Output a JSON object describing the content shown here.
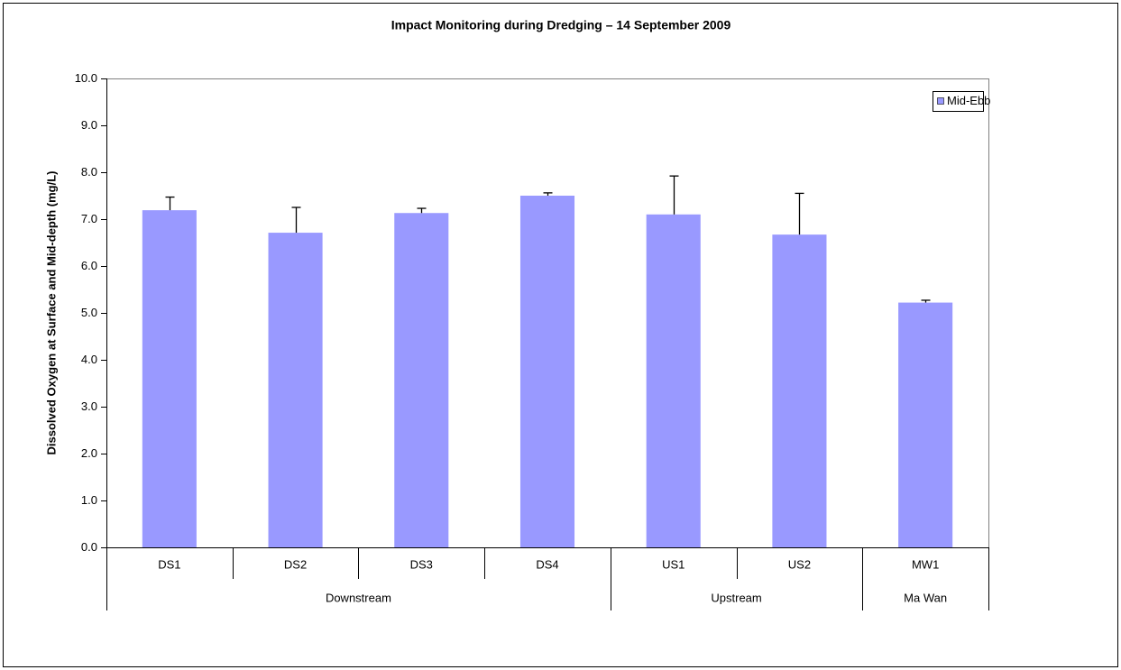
{
  "chart_data": {
    "type": "bar",
    "title": "Impact Monitoring during Dredging –  14 September 2009",
    "y_label": "Dissolved Oxygen at Surface and Mid-depth (mg/L)",
    "categories": [
      "DS1",
      "DS2",
      "DS3",
      "DS4",
      "US1",
      "US2",
      "MW1"
    ],
    "groups": [
      {
        "label": "Downstream",
        "span": 4
      },
      {
        "label": "Upstream",
        "span": 2
      },
      {
        "label": "Ma Wan",
        "span": 1
      }
    ],
    "series": [
      {
        "name": "Mid-Ebb",
        "color": "#9999ff",
        "values": [
          7.19,
          6.71,
          7.13,
          7.5,
          7.1,
          6.67,
          5.22
        ],
        "errors": [
          0.28,
          0.54,
          0.1,
          0.06,
          0.82,
          0.88,
          0.05
        ]
      }
    ],
    "ylim": [
      0,
      10
    ],
    "yticks": [
      {
        "value": 0,
        "label": "0.0"
      },
      {
        "value": 1,
        "label": "1.0"
      },
      {
        "value": 2,
        "label": "2.0"
      },
      {
        "value": 3,
        "label": "3.0"
      },
      {
        "value": 4,
        "label": "4.0"
      },
      {
        "value": 5,
        "label": "5.0"
      },
      {
        "value": 6,
        "label": "6.0"
      },
      {
        "value": 7,
        "label": "7.0"
      },
      {
        "value": 8,
        "label": "8.0"
      },
      {
        "value": 9,
        "label": "9.0"
      },
      {
        "value": 10,
        "label": "10.0"
      }
    ],
    "legend": "top-right"
  }
}
